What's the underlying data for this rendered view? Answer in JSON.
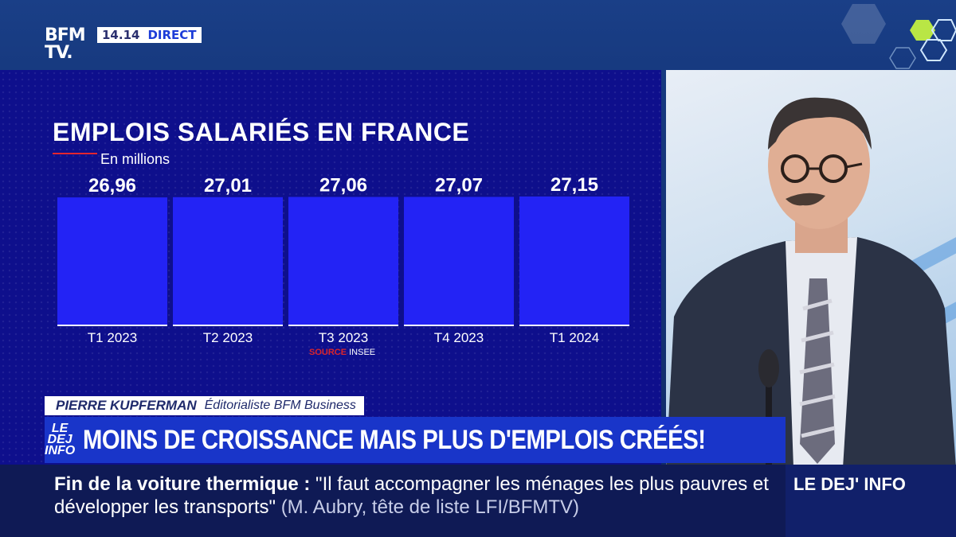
{
  "broadcast": {
    "logo": "BFM TV.",
    "time": "14.14",
    "live_label": "DIRECT"
  },
  "chart_data": {
    "type": "bar",
    "title": "EMPLOIS SALARIÉS EN FRANCE",
    "unit": "En millions",
    "categories": [
      "T1 2023",
      "T2 2023",
      "T3 2023",
      "T4 2023",
      "T1 2024"
    ],
    "values": [
      26.96,
      27.01,
      27.06,
      27.07,
      27.15
    ],
    "value_labels": [
      "26,96",
      "27,01",
      "27,06",
      "27,07",
      "27,15"
    ],
    "source_label": "SOURCE",
    "source": "INSEE",
    "colors": {
      "bar": "#2323f5",
      "background": "#0e0f8c",
      "accent": "#e3262f"
    }
  },
  "lower_third": {
    "name": "PIERRE KUPFERMAN",
    "role": "Éditorialiste BFM Business",
    "show": "LE DEJ INFO",
    "headline": "MOINS DE CROISSANCE MAIS PLUS D'EMPLOIS CRÉÉS!"
  },
  "ticker": {
    "topic": "Fin de la voiture thermique :",
    "quote": "\"Il faut accompagner les ménages les plus pauvres et développer les transports\"",
    "attribution": "(M. Aubry, tête de liste LFI/BFMTV)",
    "program_tag": "LE DEJ' INFO"
  }
}
